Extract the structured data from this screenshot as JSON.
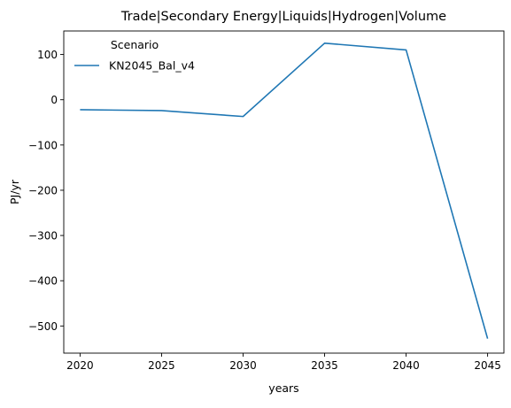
{
  "chart_data": {
    "type": "line",
    "title": "Trade|Secondary Energy|Liquids|Hydrogen|Volume",
    "xlabel": "years",
    "ylabel": "PJ/yr",
    "x": [
      2020,
      2025,
      2030,
      2035,
      2040,
      2045
    ],
    "xticks": [
      "2020",
      "2025",
      "2030",
      "2035",
      "2040",
      "2045"
    ],
    "yticks": [
      -500,
      -400,
      -300,
      -200,
      -100,
      0,
      100
    ],
    "ytick_labels": [
      "−500",
      "−400",
      "−300",
      "−200",
      "−100",
      "0",
      "100"
    ],
    "xlim": [
      2019,
      2046
    ],
    "ylim": [
      -560,
      152
    ],
    "grid": false,
    "legend": {
      "title": "Scenario",
      "placement": "top-left"
    },
    "series": [
      {
        "name": "KN2045_Bal_v4",
        "color": "#1f77b4",
        "values": [
          -22,
          -24,
          -37,
          125,
          110,
          -528
        ]
      }
    ]
  }
}
